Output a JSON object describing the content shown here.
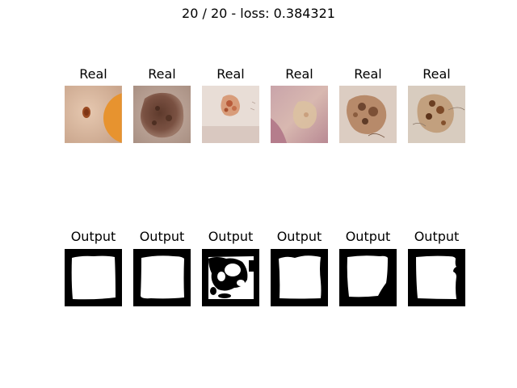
{
  "figure": {
    "title": "20 / 20 - loss: 0.384321"
  },
  "rows": [
    {
      "kind": "real",
      "panels": [
        {
          "label": "Real"
        },
        {
          "label": "Real"
        },
        {
          "label": "Real"
        },
        {
          "label": "Real"
        },
        {
          "label": "Real"
        },
        {
          "label": "Real"
        }
      ]
    },
    {
      "kind": "output",
      "panels": [
        {
          "label": "Output"
        },
        {
          "label": "Output"
        },
        {
          "label": "Output"
        },
        {
          "label": "Output"
        },
        {
          "label": "Output"
        },
        {
          "label": "Output"
        }
      ]
    }
  ]
}
